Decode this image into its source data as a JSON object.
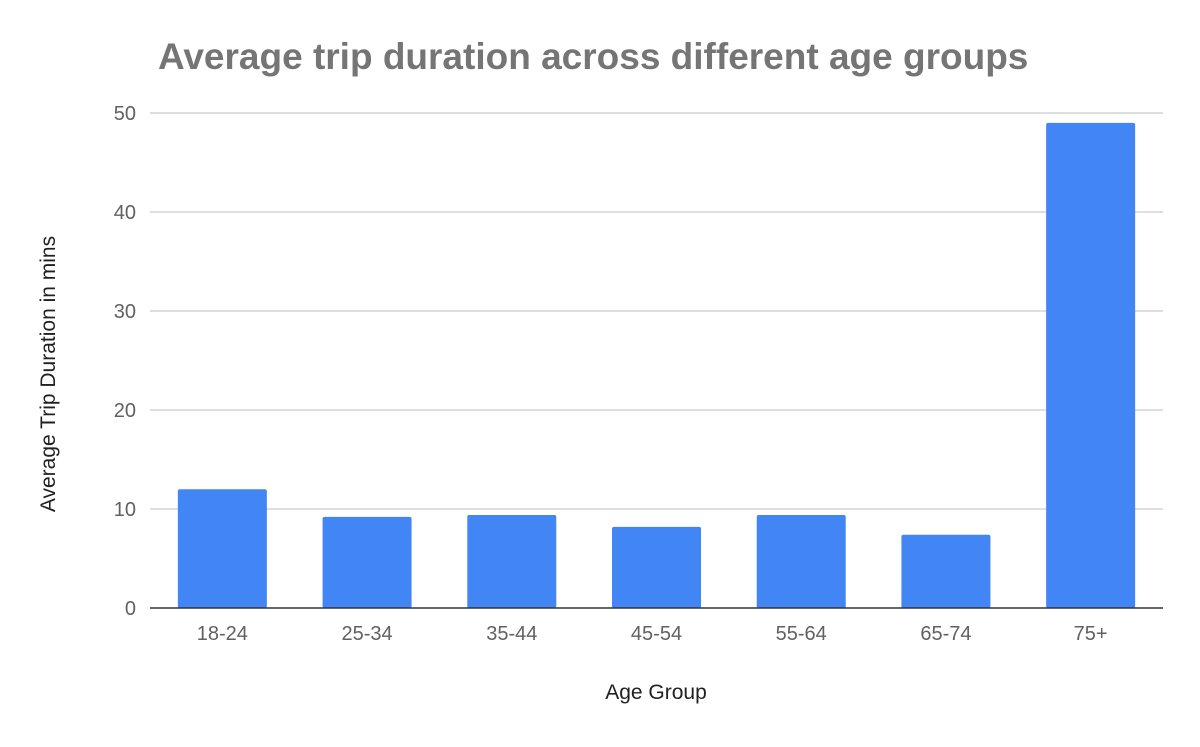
{
  "chart_data": {
    "type": "bar",
    "title": "Average trip duration across different age groups",
    "xlabel": "Age Group",
    "ylabel": "Average Trip Duration in mins",
    "categories": [
      "18-24",
      "25-34",
      "35-44",
      "45-54",
      "55-64",
      "65-74",
      "75+"
    ],
    "values": [
      12.0,
      9.2,
      9.4,
      8.2,
      9.4,
      7.4,
      49.0
    ],
    "ylim": [
      0,
      50
    ],
    "yticks": [
      0,
      10,
      20,
      30,
      40,
      50
    ],
    "grid": true,
    "legend": "none",
    "bar_color": "#4285f4",
    "grid_color": "#cccccc",
    "axis_color": "#333333"
  }
}
